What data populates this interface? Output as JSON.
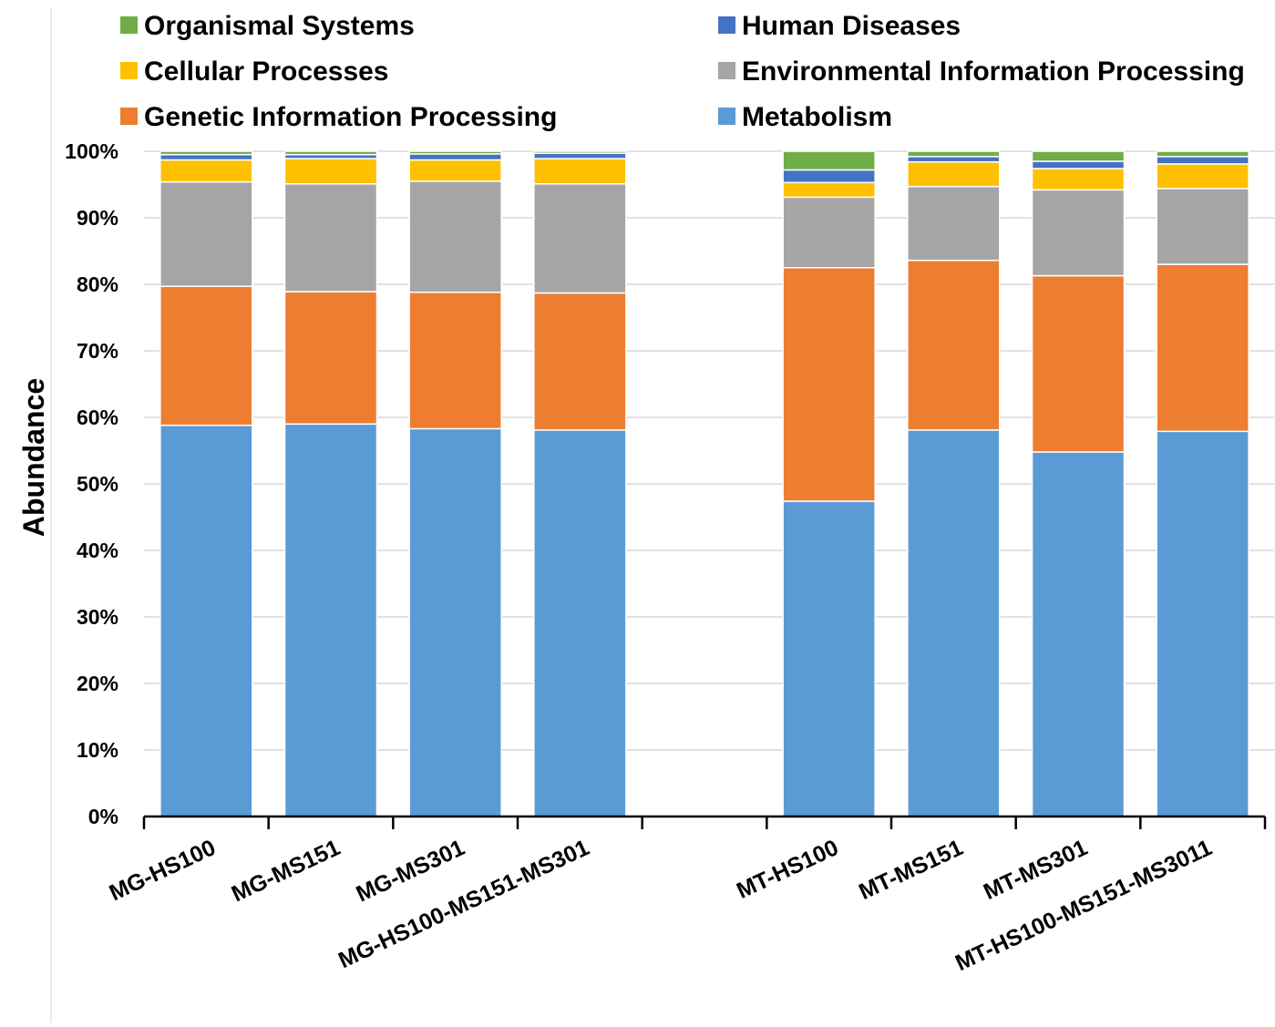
{
  "chart_data": {
    "type": "bar",
    "stacked": true,
    "percent_stacked": true,
    "title": "",
    "xlabel": "",
    "ylabel": "Abundance",
    "ylim": [
      0,
      100
    ],
    "y_ticks": [
      "0%",
      "10%",
      "20%",
      "30%",
      "40%",
      "50%",
      "60%",
      "70%",
      "80%",
      "90%",
      "100%"
    ],
    "grid": "horizontal",
    "legend_position": "top",
    "categories": [
      "MG-HS100",
      "MG-MS151",
      "MG-MS301",
      "MG-HS100-MS151-MS301",
      "",
      "MT-HS100",
      "MT-MS151",
      "MT-MS301",
      "MT-HS100-MS151-MS3011"
    ],
    "series": [
      {
        "name": "Metabolism",
        "color": "#5b9bd5",
        "values": [
          58.8,
          59.0,
          58.3,
          58.1,
          null,
          47.4,
          58.1,
          54.8,
          57.9
        ]
      },
      {
        "name": "Genetic Information Processing",
        "color": "#ed7d31",
        "values": [
          20.9,
          19.9,
          20.5,
          20.6,
          null,
          35.1,
          25.5,
          26.5,
          25.1
        ]
      },
      {
        "name": "Environmental Information Processing",
        "color": "#a5a5a5",
        "values": [
          15.7,
          16.2,
          16.7,
          16.4,
          null,
          10.6,
          11.1,
          12.9,
          11.4
        ]
      },
      {
        "name": "Cellular Processes",
        "color": "#ffc000",
        "values": [
          3.3,
          3.8,
          3.2,
          3.8,
          null,
          2.2,
          3.7,
          3.2,
          3.7
        ]
      },
      {
        "name": "Human Diseases",
        "color": "#4472c4",
        "values": [
          0.8,
          0.6,
          0.9,
          0.8,
          null,
          1.9,
          0.8,
          1.1,
          1.1
        ]
      },
      {
        "name": "Organismal Systems",
        "color": "#70ad47",
        "values": [
          0.5,
          0.5,
          0.4,
          0.3,
          null,
          2.8,
          0.8,
          1.5,
          0.8
        ]
      }
    ],
    "legend_order": [
      "Organismal Systems",
      "Human Diseases",
      "Cellular Processes",
      "Environmental Information Processing",
      "Genetic Information Processing",
      "Metabolism"
    ]
  }
}
